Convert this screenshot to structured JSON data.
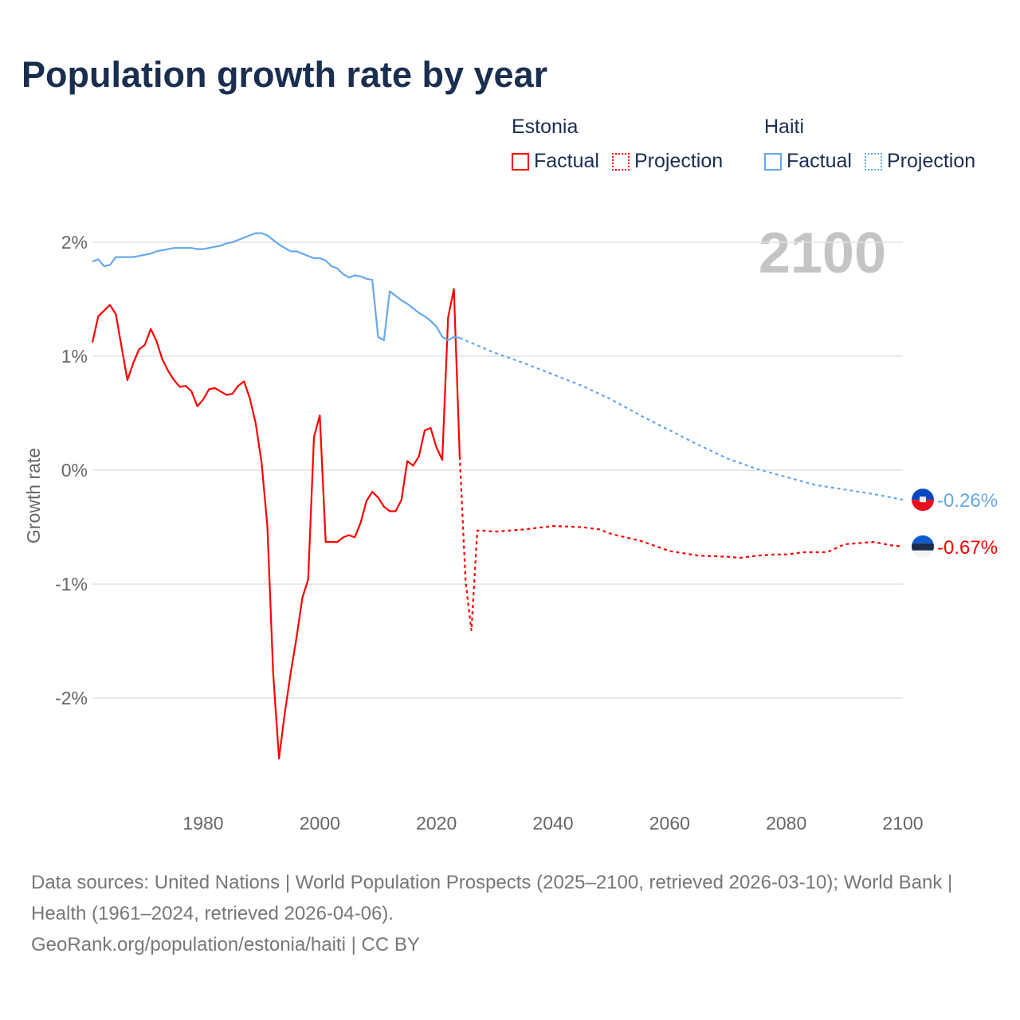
{
  "chart_data": {
    "type": "line",
    "title": "Population growth rate by year",
    "ylabel": "Growth rate",
    "xlabel": "",
    "xlim": [
      1961,
      2100
    ],
    "ylim": [
      -2.8,
      2.2
    ],
    "grid": true,
    "year_watermark": "2100",
    "x_ticks": [
      1980,
      2000,
      2020,
      2040,
      2060,
      2080,
      2100
    ],
    "y_ticks": [
      {
        "v": 2,
        "label": "2%"
      },
      {
        "v": 1,
        "label": "1%"
      },
      {
        "v": 0,
        "label": "0%"
      },
      {
        "v": -1,
        "label": "-1%"
      },
      {
        "v": -2,
        "label": "-2%"
      }
    ],
    "legend": [
      {
        "country": "Estonia",
        "factual_label": "Factual",
        "projection_label": "Projection",
        "color": "#ff0000"
      },
      {
        "country": "Haiti",
        "factual_label": "Factual",
        "projection_label": "Projection",
        "color": "#66a8eb"
      }
    ],
    "series": [
      {
        "name": "Estonia",
        "color": "#ff0000",
        "end_label": "-0.67%",
        "factual": [
          [
            1961,
            1.12
          ],
          [
            1962,
            1.35
          ],
          [
            1963,
            1.4
          ],
          [
            1964,
            1.45
          ],
          [
            1965,
            1.37
          ],
          [
            1966,
            1.08
          ],
          [
            1967,
            0.79
          ],
          [
            1968,
            0.94
          ],
          [
            1969,
            1.06
          ],
          [
            1970,
            1.1
          ],
          [
            1971,
            1.24
          ],
          [
            1972,
            1.13
          ],
          [
            1973,
            0.97
          ],
          [
            1974,
            0.87
          ],
          [
            1975,
            0.79
          ],
          [
            1976,
            0.73
          ],
          [
            1977,
            0.74
          ],
          [
            1978,
            0.69
          ],
          [
            1979,
            0.56
          ],
          [
            1980,
            0.62
          ],
          [
            1981,
            0.71
          ],
          [
            1982,
            0.72
          ],
          [
            1983,
            0.69
          ],
          [
            1984,
            0.66
          ],
          [
            1985,
            0.67
          ],
          [
            1986,
            0.74
          ],
          [
            1987,
            0.78
          ],
          [
            1988,
            0.63
          ],
          [
            1989,
            0.41
          ],
          [
            1990,
            0.07
          ],
          [
            1991,
            -0.49
          ],
          [
            1992,
            -1.78
          ],
          [
            1993,
            -2.53
          ],
          [
            1994,
            -2.13
          ],
          [
            1995,
            -1.78
          ],
          [
            1996,
            -1.47
          ],
          [
            1997,
            -1.12
          ],
          [
            1998,
            -0.96
          ],
          [
            1999,
            0.29
          ],
          [
            2000,
            0.48
          ],
          [
            2001,
            -0.63
          ],
          [
            2002,
            -0.63
          ],
          [
            2003,
            -0.63
          ],
          [
            2004,
            -0.59
          ],
          [
            2005,
            -0.57
          ],
          [
            2006,
            -0.59
          ],
          [
            2007,
            -0.46
          ],
          [
            2008,
            -0.27
          ],
          [
            2009,
            -0.19
          ],
          [
            2010,
            -0.24
          ],
          [
            2011,
            -0.32
          ],
          [
            2012,
            -0.36
          ],
          [
            2013,
            -0.36
          ],
          [
            2014,
            -0.26
          ],
          [
            2015,
            0.08
          ],
          [
            2016,
            0.04
          ],
          [
            2017,
            0.12
          ],
          [
            2018,
            0.35
          ],
          [
            2019,
            0.37
          ],
          [
            2020,
            0.2
          ],
          [
            2021,
            0.09
          ],
          [
            2022,
            1.34
          ],
          [
            2023,
            1.59
          ],
          [
            2024,
            0.12
          ]
        ],
        "projection": [
          [
            2024,
            0.12
          ],
          [
            2025,
            -0.98
          ],
          [
            2026,
            -1.41
          ],
          [
            2027,
            -0.53
          ],
          [
            2028,
            -0.53
          ],
          [
            2030,
            -0.54
          ],
          [
            2035,
            -0.52
          ],
          [
            2040,
            -0.49
          ],
          [
            2045,
            -0.5
          ],
          [
            2048,
            -0.52
          ],
          [
            2050,
            -0.56
          ],
          [
            2055,
            -0.62
          ],
          [
            2060,
            -0.71
          ],
          [
            2065,
            -0.75
          ],
          [
            2070,
            -0.76
          ],
          [
            2072,
            -0.77
          ],
          [
            2075,
            -0.75
          ],
          [
            2078,
            -0.74
          ],
          [
            2080,
            -0.74
          ],
          [
            2083,
            -0.72
          ],
          [
            2087,
            -0.72
          ],
          [
            2090,
            -0.65
          ],
          [
            2095,
            -0.63
          ],
          [
            2098,
            -0.66
          ],
          [
            2100,
            -0.67
          ]
        ]
      },
      {
        "name": "Haiti",
        "color": "#66a8eb",
        "end_label": "-0.26%",
        "factual": [
          [
            1961,
            1.83
          ],
          [
            1962,
            1.85
          ],
          [
            1963,
            1.79
          ],
          [
            1964,
            1.8
          ],
          [
            1965,
            1.87
          ],
          [
            1966,
            1.87
          ],
          [
            1967,
            1.87
          ],
          [
            1968,
            1.87
          ],
          [
            1969,
            1.88
          ],
          [
            1970,
            1.89
          ],
          [
            1971,
            1.9
          ],
          [
            1972,
            1.92
          ],
          [
            1973,
            1.93
          ],
          [
            1974,
            1.94
          ],
          [
            1975,
            1.95
          ],
          [
            1976,
            1.95
          ],
          [
            1977,
            1.95
          ],
          [
            1978,
            1.95
          ],
          [
            1979,
            1.94
          ],
          [
            1980,
            1.94
          ],
          [
            1981,
            1.95
          ],
          [
            1982,
            1.96
          ],
          [
            1983,
            1.97
          ],
          [
            1984,
            1.99
          ],
          [
            1985,
            2.0
          ],
          [
            1986,
            2.02
          ],
          [
            1987,
            2.04
          ],
          [
            1988,
            2.06
          ],
          [
            1989,
            2.08
          ],
          [
            1990,
            2.08
          ],
          [
            1991,
            2.06
          ],
          [
            1992,
            2.02
          ],
          [
            1993,
            1.98
          ],
          [
            1994,
            1.95
          ],
          [
            1995,
            1.92
          ],
          [
            1996,
            1.92
          ],
          [
            1997,
            1.9
          ],
          [
            1998,
            1.88
          ],
          [
            1999,
            1.86
          ],
          [
            2000,
            1.86
          ],
          [
            2001,
            1.84
          ],
          [
            2002,
            1.79
          ],
          [
            2003,
            1.77
          ],
          [
            2004,
            1.72
          ],
          [
            2005,
            1.69
          ],
          [
            2006,
            1.71
          ],
          [
            2007,
            1.7
          ],
          [
            2008,
            1.68
          ],
          [
            2009,
            1.67
          ],
          [
            2010,
            1.17
          ],
          [
            2011,
            1.14
          ],
          [
            2012,
            1.57
          ],
          [
            2013,
            1.53
          ],
          [
            2014,
            1.49
          ],
          [
            2015,
            1.46
          ],
          [
            2016,
            1.42
          ],
          [
            2017,
            1.38
          ],
          [
            2018,
            1.35
          ],
          [
            2019,
            1.31
          ],
          [
            2020,
            1.26
          ],
          [
            2021,
            1.17
          ],
          [
            2022,
            1.14
          ],
          [
            2023,
            1.17
          ],
          [
            2024,
            1.16
          ]
        ],
        "projection": [
          [
            2024,
            1.16
          ],
          [
            2030,
            1.03
          ],
          [
            2035,
            0.94
          ],
          [
            2040,
            0.84
          ],
          [
            2045,
            0.74
          ],
          [
            2050,
            0.62
          ],
          [
            2055,
            0.48
          ],
          [
            2060,
            0.35
          ],
          [
            2065,
            0.22
          ],
          [
            2070,
            0.1
          ],
          [
            2075,
            0.01
          ],
          [
            2080,
            -0.06
          ],
          [
            2085,
            -0.13
          ],
          [
            2090,
            -0.17
          ],
          [
            2095,
            -0.21
          ],
          [
            2100,
            -0.26
          ]
        ]
      }
    ]
  },
  "footer": {
    "sources": "Data sources: United Nations | World Population Prospects (2025–2100, retrieved 2026-03-10); World Bank | Health (1961–2024, retrieved 2026-04-06).",
    "credit": "GeoRank.org/population/estonia/haiti | CC BY"
  }
}
